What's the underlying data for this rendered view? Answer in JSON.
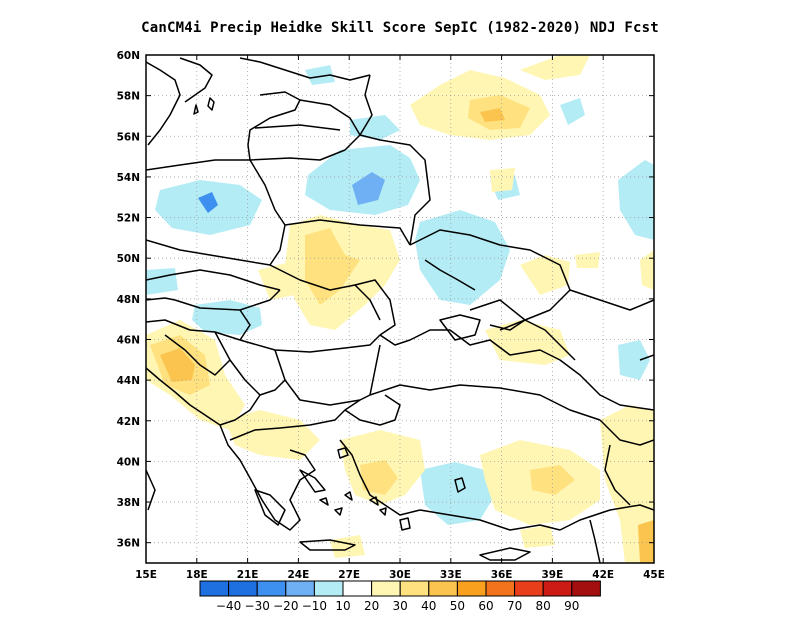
{
  "title": "CanCM4i Precip Heidke Skill Score SepIC (1982-2020) NDJ Fcst",
  "map": {
    "lon_range": [
      15,
      45
    ],
    "lat_range": [
      35,
      60
    ],
    "lon_ticks": [
      "15E",
      "18E",
      "21E",
      "24E",
      "27E",
      "30E",
      "33E",
      "36E",
      "39E",
      "42E",
      "45E"
    ],
    "lat_ticks": [
      "60N",
      "58N",
      "56N",
      "54N",
      "52N",
      "50N",
      "48N",
      "46N",
      "44N",
      "42N",
      "40N",
      "38N",
      "36N"
    ],
    "gridlines": "dotted"
  },
  "colorbar": {
    "labels": [
      "-40",
      "-30",
      "-20",
      "-10",
      "10",
      "20",
      "30",
      "40",
      "50",
      "60",
      "70",
      "80",
      "90"
    ],
    "colors": [
      "#1e6fe0",
      "#3d8ff0",
      "#6fb0f5",
      "#b4ecf5",
      "#ffffff",
      "#fff6b3",
      "#ffe27f",
      "#fbc44f",
      "#f9a11f",
      "#f2731b",
      "#e83e1a",
      "#cc1a14",
      "#a30f0f"
    ]
  },
  "palette": {
    "light_blue": "#b4ecf5",
    "mid_blue": "#6fb0f5",
    "dark_blue": "#3d8ff0",
    "light_yellow": "#fff6b3",
    "yellow": "#ffe27f",
    "orange": "#fbc44f",
    "dark_orange": "#f9a11f"
  }
}
